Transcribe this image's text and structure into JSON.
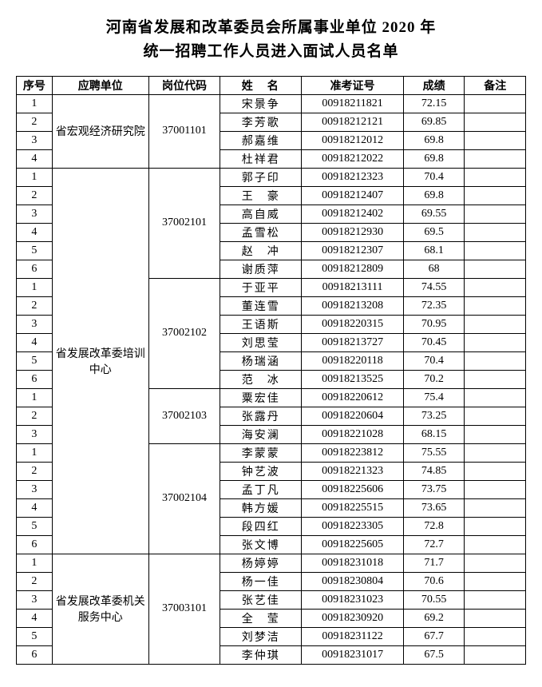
{
  "title": {
    "line1": "河南省发展和改革委员会所属事业单位 2020 年",
    "line2": "统一招聘工作人员进入面试人员名单"
  },
  "headers": {
    "seq": "序号",
    "unit": "应聘单位",
    "code": "岗位代码",
    "name": "姓　名",
    "exam": "准考证号",
    "score": "成绩",
    "note": "备注"
  },
  "units": [
    {
      "unit": "省宏观经济研究院",
      "codes": [
        {
          "code": "37001101",
          "rows": [
            {
              "seq": "1",
              "name": "宋景争",
              "exam": "00918211821",
              "score": "72.15"
            },
            {
              "seq": "2",
              "name": "李芳歌",
              "exam": "00918212121",
              "score": "69.85"
            },
            {
              "seq": "3",
              "name": "郝嘉维",
              "exam": "00918212012",
              "score": "69.8"
            },
            {
              "seq": "4",
              "name": "杜祥君",
              "exam": "00918212022",
              "score": "69.8"
            }
          ]
        }
      ]
    },
    {
      "unit": "省发展改革委培训中心",
      "codes": [
        {
          "code": "37002101",
          "rows": [
            {
              "seq": "1",
              "name": "郭子印",
              "exam": "00918212323",
              "score": "70.4"
            },
            {
              "seq": "2",
              "name": "王　豪",
              "exam": "00918212407",
              "score": "69.8"
            },
            {
              "seq": "3",
              "name": "高自威",
              "exam": "00918212402",
              "score": "69.55"
            },
            {
              "seq": "4",
              "name": "孟雪松",
              "exam": "00918212930",
              "score": "69.5"
            },
            {
              "seq": "5",
              "name": "赵　冲",
              "exam": "00918212307",
              "score": "68.1"
            },
            {
              "seq": "6",
              "name": "谢质萍",
              "exam": "00918212809",
              "score": "68"
            }
          ]
        },
        {
          "code": "37002102",
          "rows": [
            {
              "seq": "1",
              "name": "于亚平",
              "exam": "00918213111",
              "score": "74.55"
            },
            {
              "seq": "2",
              "name": "董连雪",
              "exam": "00918213208",
              "score": "72.35"
            },
            {
              "seq": "3",
              "name": "王语斯",
              "exam": "00918220315",
              "score": "70.95"
            },
            {
              "seq": "4",
              "name": "刘思莹",
              "exam": "00918213727",
              "score": "70.45"
            },
            {
              "seq": "5",
              "name": "杨瑞涵",
              "exam": "00918220118",
              "score": "70.4"
            },
            {
              "seq": "6",
              "name": "范　冰",
              "exam": "00918213525",
              "score": "70.2"
            }
          ]
        },
        {
          "code": "37002103",
          "rows": [
            {
              "seq": "1",
              "name": "粟宏佳",
              "exam": "00918220612",
              "score": "75.4"
            },
            {
              "seq": "2",
              "name": "张露丹",
              "exam": "00918220604",
              "score": "73.25"
            },
            {
              "seq": "3",
              "name": "海安澜",
              "exam": "00918221028",
              "score": "68.15"
            }
          ]
        },
        {
          "code": "37002104",
          "rows": [
            {
              "seq": "1",
              "name": "李蒙蒙",
              "exam": "00918223812",
              "score": "75.55"
            },
            {
              "seq": "2",
              "name": "钟艺波",
              "exam": "00918221323",
              "score": "74.85"
            },
            {
              "seq": "3",
              "name": "孟丁凡",
              "exam": "00918225606",
              "score": "73.75"
            },
            {
              "seq": "4",
              "name": "韩方媛",
              "exam": "00918225515",
              "score": "73.65"
            },
            {
              "seq": "5",
              "name": "段四红",
              "exam": "00918223305",
              "score": "72.8"
            },
            {
              "seq": "6",
              "name": "张文博",
              "exam": "00918225605",
              "score": "72.7"
            }
          ]
        }
      ]
    },
    {
      "unit": "省发展改革委机关服务中心",
      "codes": [
        {
          "code": "37003101",
          "rows": [
            {
              "seq": "1",
              "name": "杨婷婷",
              "exam": "00918231018",
              "score": "71.7"
            },
            {
              "seq": "2",
              "name": "杨一佳",
              "exam": "00918230804",
              "score": "70.6"
            },
            {
              "seq": "3",
              "name": "张艺佳",
              "exam": "00918231023",
              "score": "70.55"
            },
            {
              "seq": "4",
              "name": "全　莹",
              "exam": "00918230920",
              "score": "69.2"
            },
            {
              "seq": "5",
              "name": "刘梦洁",
              "exam": "00918231122",
              "score": "67.7"
            },
            {
              "seq": "6",
              "name": "李仲琪",
              "exam": "00918231017",
              "score": "67.5"
            }
          ]
        }
      ]
    }
  ]
}
